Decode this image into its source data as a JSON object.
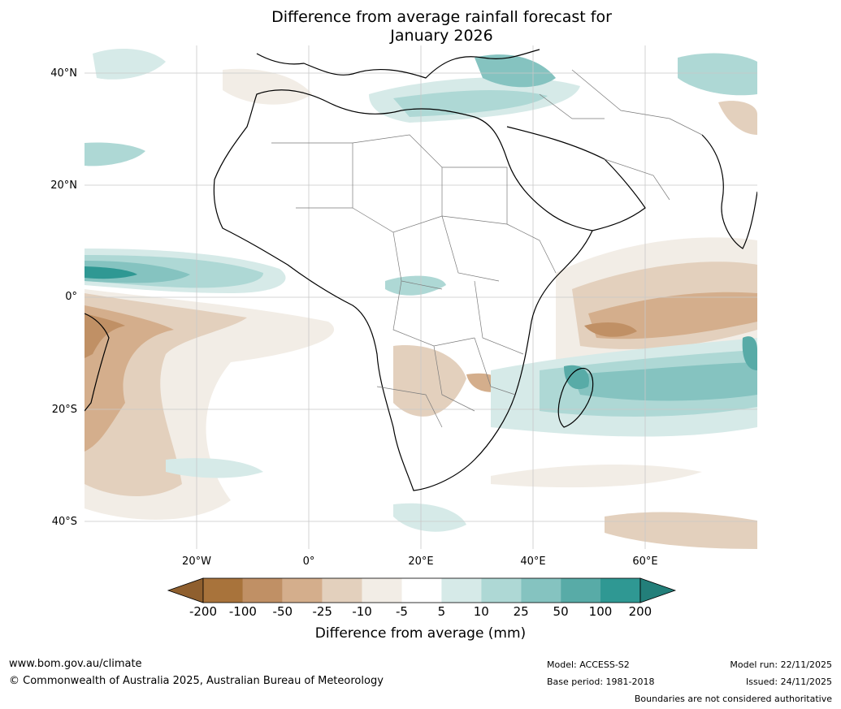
{
  "title": {
    "line1": "Difference from average rainfall forecast for",
    "line2": "January 2026"
  },
  "axes": {
    "lat_labels": [
      "40°N",
      "20°N",
      "0°",
      "20°S",
      "40°S"
    ],
    "lon_labels": [
      "20°W",
      "0°",
      "20°E",
      "40°E",
      "60°E"
    ]
  },
  "colorbar": {
    "labels": [
      "-200",
      "-100",
      "-50",
      "-25",
      "-10",
      "-5",
      "5",
      "10",
      "25",
      "50",
      "100",
      "200"
    ],
    "colors": [
      "#a8733b",
      "#c09065",
      "#d4ae8c",
      "#e3d0bd",
      "#f2ede6",
      "#ffffff",
      "#d6eae8",
      "#aed8d5",
      "#85c3c0",
      "#58aba7",
      "#2f9893"
    ],
    "below_color": "#8f5f2e",
    "above_color": "#237f7a",
    "title": "Difference from average (mm)"
  },
  "footer": {
    "website": "www.bom.gov.au/climate",
    "copyright": "© Commonwealth of Australia 2025, Australian Bureau of Meteorology",
    "model": "Model: ACCESS-S2",
    "base_period": "Base period: 1981-2018",
    "model_run": "Model run: 22/11/2025",
    "issued": "Issued: 24/11/2025",
    "disclaimer": "Boundaries are not considered authoritative"
  }
}
